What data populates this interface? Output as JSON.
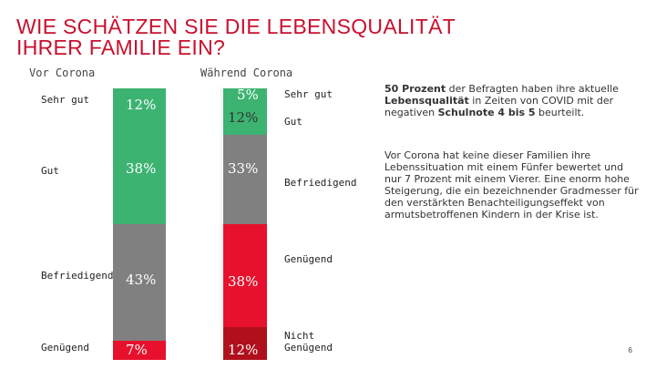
{
  "slide": {
    "title_line1": "WIE SCHÄTZEN SIE DIE LEBENSQUALITÄT",
    "title_line2": "IHRER FAMILIE EIN?",
    "page_number": "6",
    "colors": {
      "accent": "#c8102e",
      "green": "#3cb371",
      "grey": "#808080",
      "red": "#e8112d",
      "dark_red": "#b0101c"
    }
  },
  "chart_data": [
    {
      "type": "bar",
      "stacked": true,
      "title": "Vor Corona",
      "unit": "%",
      "categories": [
        "Sehr gut",
        "Gut",
        "Befriedigend",
        "Genügend"
      ],
      "values": [
        12,
        38,
        43,
        7
      ],
      "value_labels": [
        "12%",
        "38%",
        "43%",
        "7%"
      ],
      "colors": [
        "#3cb371",
        "#3cb371",
        "#808080",
        "#e8112d"
      ]
    },
    {
      "type": "bar",
      "stacked": true,
      "title": "Während Corona",
      "unit": "%",
      "categories": [
        "Sehr gut",
        "Gut",
        "Befriedigend",
        "Genügend",
        "Nicht Genügend"
      ],
      "values": [
        5,
        12,
        33,
        38,
        12
      ],
      "value_labels": [
        "5%",
        "12%",
        "33%",
        "38%",
        "12%"
      ],
      "colors": [
        "#3cb371",
        "#3cb371",
        "#808080",
        "#e8112d",
        "#b0101c"
      ]
    }
  ],
  "labels": {
    "left": [
      "Sehr gut",
      "Gut",
      "Befriedigend",
      "Genügend"
    ],
    "right": [
      "Sehr gut",
      "Gut",
      "Befriedigend",
      "Genügend",
      "Nicht",
      "Genügend"
    ]
  },
  "text": {
    "p1_bold1": "50 Prozent",
    "p1_text1": " der Befragten haben ihre aktuelle ",
    "p1_bold2": "Lebensqualität",
    "p1_text2": " in Zeiten von COVID mit der negativen ",
    "p1_bold3": "Schulnote 4 bis 5",
    "p1_text3": " beurteilt.",
    "p2": "Vor Corona hat keine dieser Familien ihre Lebenssituation mit einem Fünfer bewertet und nur 7 Prozent mit einem Vierer. Eine enorm hohe Steigerung, die ein bezeichnender Gradmesser für den verstärkten Benachteiligungseffekt von armutsbetroffenen Kindern in der Krise ist."
  }
}
